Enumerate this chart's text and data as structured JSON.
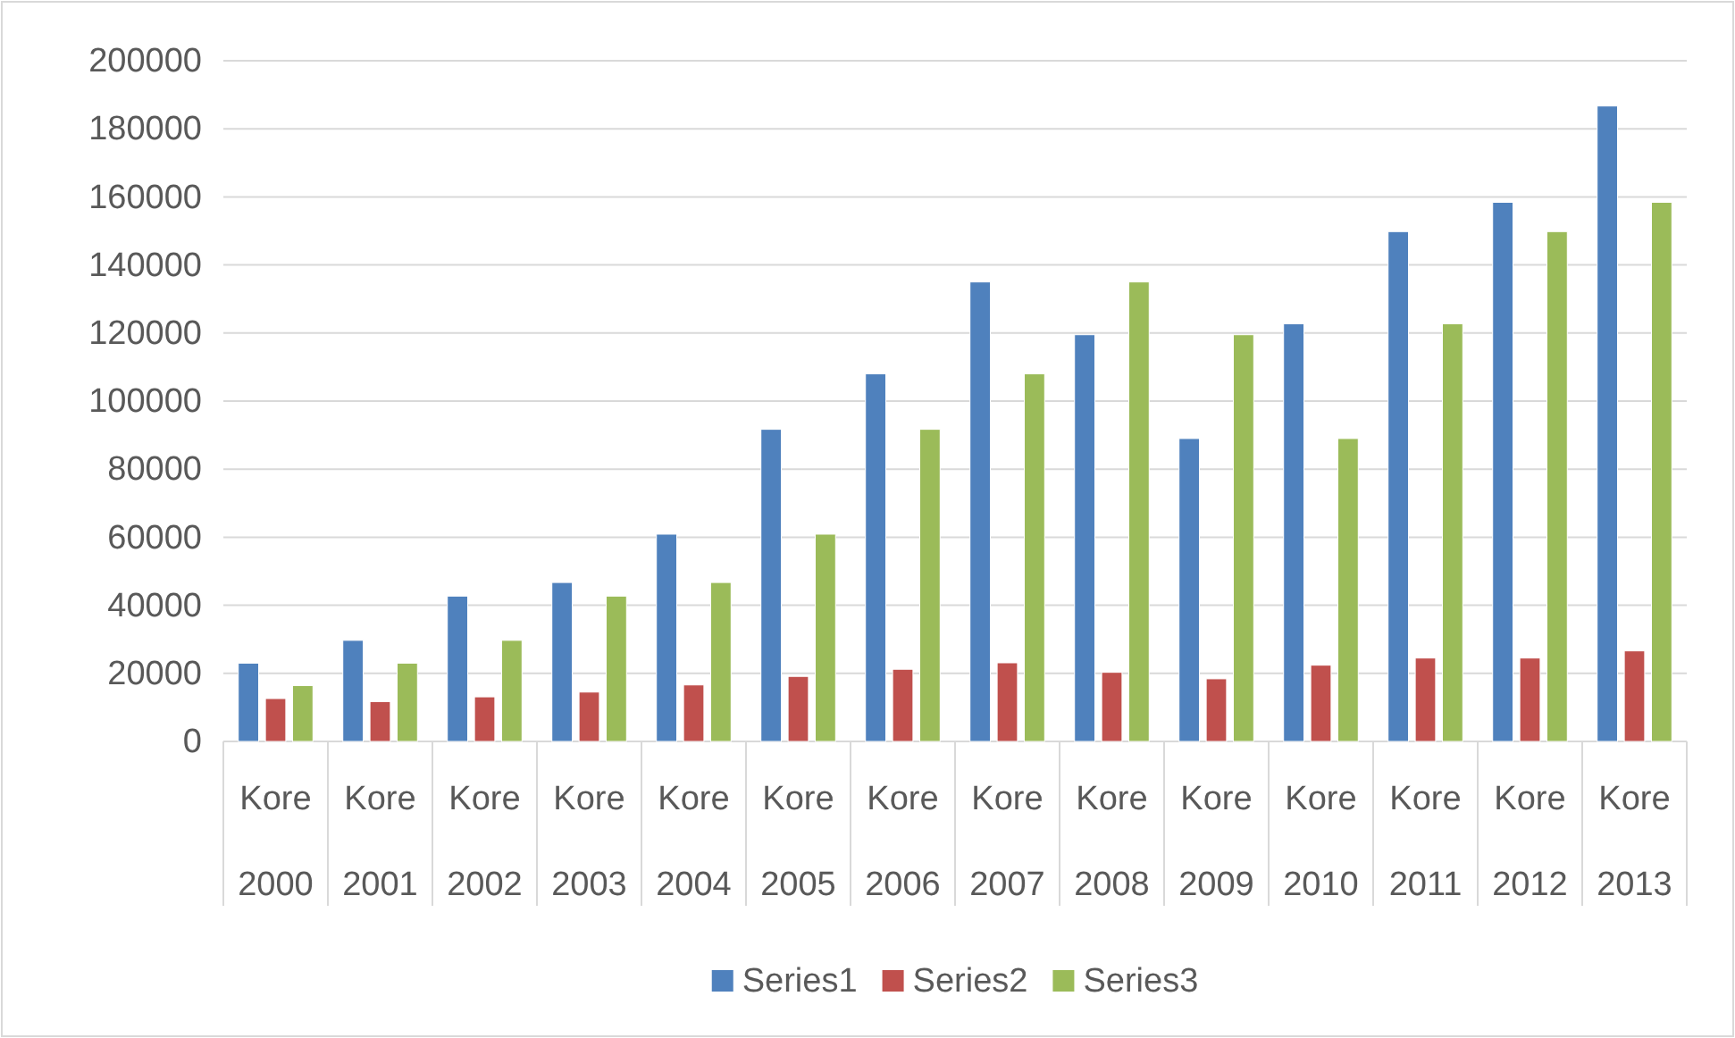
{
  "chart_data": {
    "type": "bar",
    "categories": [
      "Kore 2000",
      "Kore 2001",
      "Kore 2002",
      "Kore 2003",
      "Kore 2004",
      "Kore 2005",
      "Kore 2006",
      "Kore 2007",
      "Kore 2008",
      "Kore 2009",
      "Kore 2010",
      "Kore 2011",
      "Kore 2012",
      "Kore 2013"
    ],
    "series": [
      {
        "name": "Series1",
        "color": "#4f81bd",
        "values": [
          23000,
          29700,
          42700,
          46700,
          60900,
          91700,
          108000,
          135000,
          119500,
          89000,
          122700,
          149800,
          158400,
          186700
        ]
      },
      {
        "name": "Series2",
        "color": "#c0504d",
        "values": [
          12600,
          11700,
          13100,
          14500,
          16600,
          19100,
          21200,
          23100,
          20300,
          18400,
          22400,
          24500,
          24500,
          26600
        ]
      },
      {
        "name": "Series3",
        "color": "#9bbb59",
        "values": [
          16400,
          23000,
          29700,
          42700,
          46700,
          60900,
          91700,
          108000,
          135000,
          119500,
          89000,
          122700,
          149800,
          158400
        ]
      }
    ],
    "ylim": [
      0,
      200000
    ],
    "yticks": [
      0,
      20000,
      40000,
      60000,
      80000,
      100000,
      120000,
      140000,
      160000,
      180000,
      200000
    ],
    "grid": "y",
    "legend": "bottom"
  }
}
